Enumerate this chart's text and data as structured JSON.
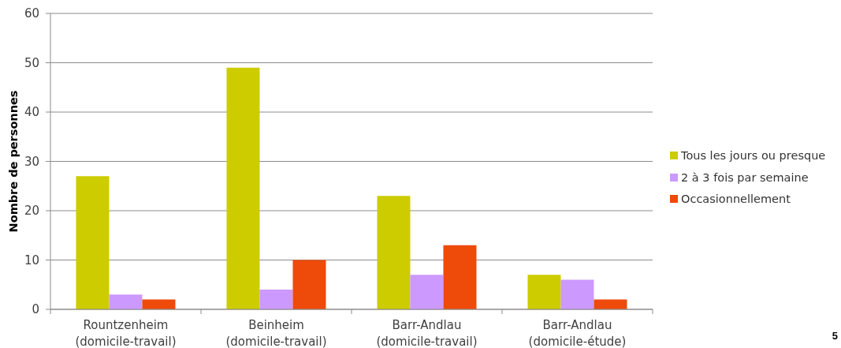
{
  "chart_data": {
    "type": "bar",
    "ylabel": "Nombre de personnes",
    "categories": [
      "Rountzenheim (domicile-travail)",
      "Beinheim (domicile-travail)",
      "Barr-Andlau (domicile-travail)",
      "Barr-Andlau (domicile-étude)"
    ],
    "series": [
      {
        "name": "Tous les jours ou presque",
        "color": "#cccc00",
        "values": [
          27,
          49,
          23,
          7
        ]
      },
      {
        "name": "2 à 3 fois par semaine",
        "color": "#cc99ff",
        "values": [
          3,
          4,
          7,
          6
        ]
      },
      {
        "name": "Occasionnellement",
        "color": "#ee4a0a",
        "values": [
          2,
          10,
          13,
          2
        ]
      }
    ],
    "ylim": [
      0,
      60
    ],
    "yticks": [
      0,
      10,
      20,
      30,
      40,
      50,
      60
    ],
    "grid": "y",
    "legend": "right",
    "annotations": [
      "5"
    ]
  }
}
